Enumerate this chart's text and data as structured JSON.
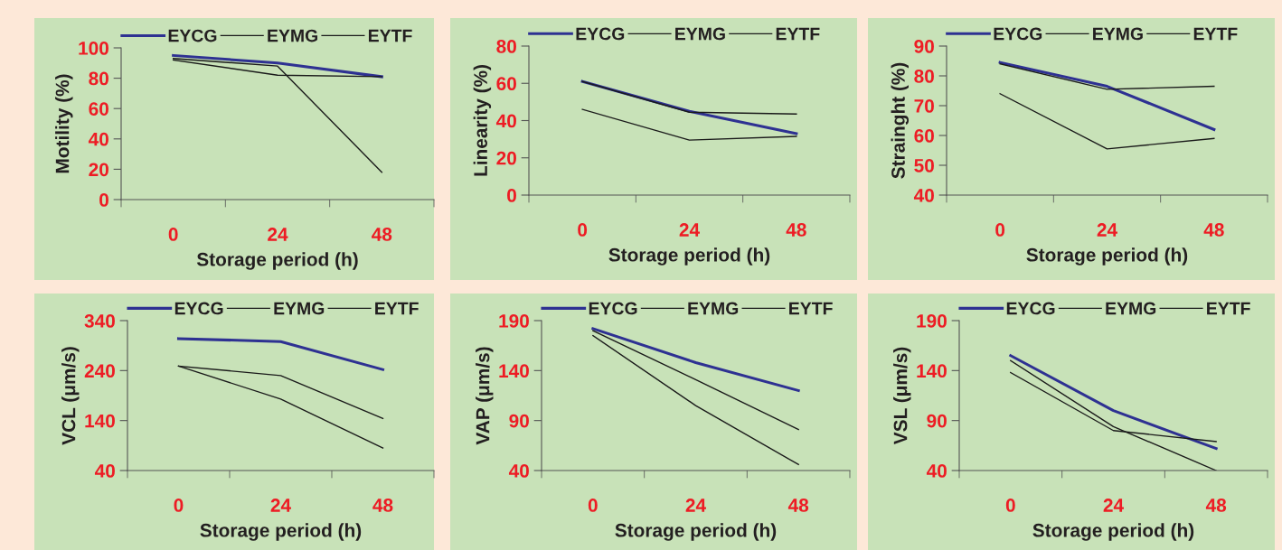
{
  "chart_data": [
    {
      "type": "line",
      "categories": [
        "0",
        "24",
        "48"
      ],
      "xlabel": "Storage period (h)",
      "ylabel": "Motility (%)",
      "ylim": [
        0,
        100
      ],
      "yticks": [
        0,
        20,
        40,
        60,
        80,
        100
      ],
      "legend": "top",
      "grid": false,
      "series": [
        {
          "name": "EYCG",
          "color": "#2e3192",
          "values": [
            95,
            90,
            81
          ]
        },
        {
          "name": "EYMG",
          "color": "#1a1a1a",
          "values": [
            93,
            88,
            18
          ]
        },
        {
          "name": "EYTF",
          "color": "#1a1a1a",
          "values": [
            92,
            82,
            81
          ]
        }
      ]
    },
    {
      "type": "line",
      "categories": [
        "0",
        "24",
        "48"
      ],
      "xlabel": "Storage period (h)",
      "ylabel": "Linearity (%)",
      "ylim": [
        0,
        80
      ],
      "yticks": [
        0,
        20,
        40,
        60,
        80
      ],
      "legend": "top",
      "grid": false,
      "series": [
        {
          "name": "EYCG",
          "color": "#2e3192",
          "values": [
            61,
            45,
            33
          ]
        },
        {
          "name": "EYMG",
          "color": "#1a1a1a",
          "values": [
            61,
            44.5,
            43.5
          ]
        },
        {
          "name": "EYTF",
          "color": "#1a1a1a",
          "values": [
            46,
            29.5,
            31.5
          ]
        }
      ]
    },
    {
      "type": "line",
      "categories": [
        "0",
        "24",
        "48"
      ],
      "xlabel": "Storage period (h)",
      "ylabel": "Strainght (%)",
      "ylim": [
        40,
        90
      ],
      "yticks": [
        40,
        50,
        60,
        70,
        80,
        90
      ],
      "legend": "top",
      "grid": false,
      "series": [
        {
          "name": "EYCG",
          "color": "#2e3192",
          "values": [
            84.5,
            76.5,
            62
          ]
        },
        {
          "name": "EYMG",
          "color": "#1a1a1a",
          "values": [
            84,
            75.5,
            76.5
          ]
        },
        {
          "name": "EYTF",
          "color": "#1a1a1a",
          "values": [
            74,
            55.5,
            59
          ]
        }
      ]
    },
    {
      "type": "line",
      "categories": [
        "0",
        "24",
        "48"
      ],
      "xlabel": "Storage period (h)",
      "ylabel": "VCL (μm/s)",
      "ylim": [
        40,
        340
      ],
      "yticks": [
        40,
        140,
        240,
        340
      ],
      "legend": "top",
      "grid": false,
      "series": [
        {
          "name": "EYCG",
          "color": "#2e3192",
          "values": [
            304,
            298,
            242
          ]
        },
        {
          "name": "EYMG",
          "color": "#1a1a1a",
          "values": [
            249,
            230,
            144
          ]
        },
        {
          "name": "EYTF",
          "color": "#1a1a1a",
          "values": [
            249,
            183,
            85
          ]
        }
      ]
    },
    {
      "type": "line",
      "categories": [
        "0",
        "24",
        "48"
      ],
      "xlabel": "Storage period (h)",
      "ylabel": "VAP (μm/s)",
      "ylim": [
        40,
        190
      ],
      "yticks": [
        40,
        90,
        140,
        190
      ],
      "legend": "top",
      "grid": false,
      "series": [
        {
          "name": "EYCG",
          "color": "#2e3192",
          "values": [
            182,
            148,
            120
          ]
        },
        {
          "name": "EYMG",
          "color": "#1a1a1a",
          "values": [
            180,
            131,
            81
          ]
        },
        {
          "name": "EYTF",
          "color": "#1a1a1a",
          "values": [
            175,
            105,
            46
          ]
        }
      ]
    },
    {
      "type": "line",
      "categories": [
        "0",
        "24",
        "48"
      ],
      "xlabel": "Storage period (h)",
      "ylabel": "VSL (μm/s)",
      "ylim": [
        40,
        190
      ],
      "yticks": [
        40,
        90,
        140,
        190
      ],
      "legend": "top",
      "grid": false,
      "series": [
        {
          "name": "EYCG",
          "color": "#2e3192",
          "values": [
            155,
            100,
            62
          ]
        },
        {
          "name": "EYMG",
          "color": "#1a1a1a",
          "values": [
            150,
            84,
            40
          ]
        },
        {
          "name": "EYTF",
          "color": "#1a1a1a",
          "values": [
            138,
            80,
            69
          ]
        }
      ]
    }
  ]
}
